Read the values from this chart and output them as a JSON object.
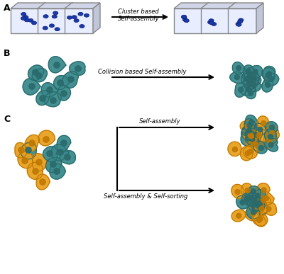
{
  "bg_color": "#f5f5f0",
  "teal_cell_color": "#3a8a8c",
  "teal_cell_edge": "#2a6a6c",
  "teal_cell_inner": "#2a6a6c",
  "orange_cell_color": "#e8a020",
  "orange_cell_edge": "#c07800",
  "orange_cell_inner": "#c07800",
  "blue_nanoparticle_color": "#1a3aaa",
  "blue_nanoparticle_edge": "#0a1a7a",
  "box_color": "#cccccc",
  "box_face": "#e8eeff",
  "label_A": "A",
  "label_B": "B",
  "label_C": "C",
  "text_cluster": "Cluster based\nSelf-assembly",
  "text_collision": "Collision based Self-assembly",
  "text_selfassembly": "Self-assembly",
  "text_selfsorting": "Self-assembly & Self-sorting"
}
